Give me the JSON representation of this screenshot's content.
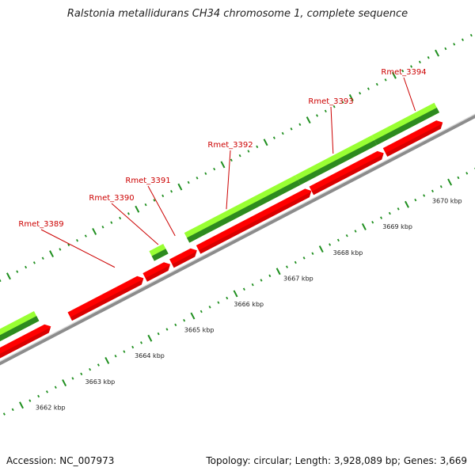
{
  "title": "Ralstonia metallidurans CH34 chromosome 1, complete sequence",
  "footer": {
    "accession": "Accession: NC_007973",
    "summary": "Topology: circular; Length: 3,928,089 bp; Genes: 3,669"
  },
  "colors": {
    "cds_forward": "#ff0000",
    "cds_forward_shade": "#b80000",
    "gene_light": "#99ff33",
    "gene_dark": "#2d8a1f",
    "backbone": "#8c8c8c",
    "backbone_light": "#d6d6d6",
    "tick": "#1f8f1f",
    "gene_label": "#cc0000",
    "leader": "#cc0000"
  },
  "genes": [
    {
      "id": "Rmet_3389"
    },
    {
      "id": "Rmet_3390"
    },
    {
      "id": "Rmet_3391"
    },
    {
      "id": "Rmet_3392"
    },
    {
      "id": "Rmet_3393"
    },
    {
      "id": "Rmet_3394"
    }
  ],
  "kbp_ticks": [
    {
      "label": "3662 kbp"
    },
    {
      "label": "3663 kbp"
    },
    {
      "label": "3664 kbp"
    },
    {
      "label": "3665 kbp"
    },
    {
      "label": "3666 kbp"
    },
    {
      "label": "3667 kbp"
    },
    {
      "label": "3668 kbp"
    },
    {
      "label": "3669 kbp"
    },
    {
      "label": "3670 kbp"
    }
  ]
}
